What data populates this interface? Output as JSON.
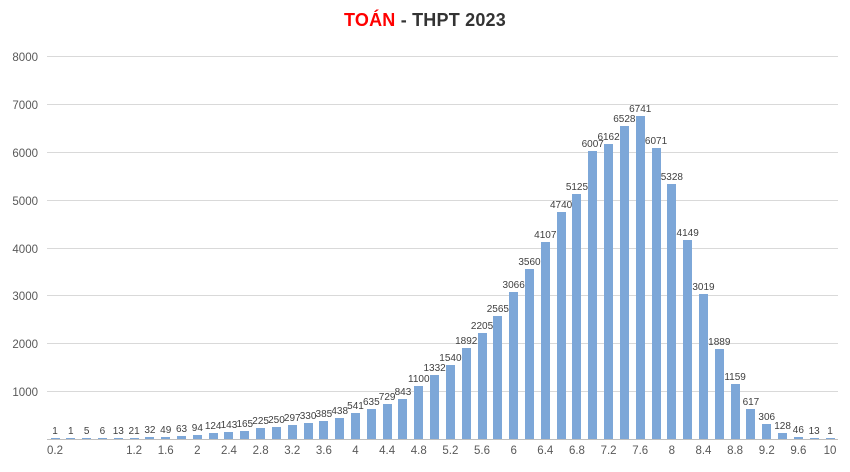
{
  "title": {
    "highlight": "TOÁN",
    "rest": " - THPT 2023"
  },
  "chart_data": {
    "type": "bar",
    "title": "TOÁN - THPT 2023",
    "x": [
      0.2,
      0.4,
      0.6,
      0.8,
      1,
      1.2,
      1.4,
      1.6,
      1.8,
      2,
      2.2,
      2.4,
      2.6,
      2.8,
      3,
      3.2,
      3.4,
      3.6,
      3.8,
      4,
      4.2,
      4.4,
      4.6,
      4.8,
      5,
      5.2,
      5.4,
      5.6,
      5.8,
      6,
      6.2,
      6.4,
      6.6,
      6.8,
      7,
      7.2,
      7.4,
      7.6,
      7.8,
      8,
      8.2,
      8.4,
      8.6,
      8.8,
      9,
      9.2,
      9.4,
      9.6,
      9.8,
      10
    ],
    "values": [
      1,
      1,
      5,
      6,
      13,
      21,
      32,
      49,
      63,
      94,
      124,
      143,
      165,
      225,
      250,
      297,
      330,
      385,
      438,
      541,
      635,
      729,
      843,
      1100,
      1332,
      1540,
      1892,
      2205,
      2565,
      3066,
      3560,
      4107,
      4740,
      5125,
      6007,
      6162,
      6528,
      6741,
      6071,
      5328,
      4149,
      3019,
      1889,
      1159,
      617,
      306,
      128,
      46,
      13,
      1
    ],
    "x_tick_labels": [
      "0.2",
      "1.2",
      "1.6",
      "2",
      "2.4",
      "2.8",
      "3.2",
      "3.6",
      "4",
      "4.4",
      "4.8",
      "5.2",
      "5.6",
      "6",
      "6.4",
      "6.8",
      "7.2",
      "7.6",
      "8",
      "8.4",
      "8.8",
      "9.2",
      "9.6",
      "10"
    ],
    "x_tick_values": [
      0.2,
      1.2,
      1.6,
      2,
      2.4,
      2.8,
      3.2,
      3.6,
      4,
      4.4,
      4.8,
      5.2,
      5.6,
      6,
      6.4,
      6.8,
      7.2,
      7.6,
      8,
      8.4,
      8.8,
      9.2,
      9.6,
      10
    ],
    "y_tick_values": [
      1000,
      2000,
      3000,
      4000,
      5000,
      6000,
      7000,
      8000
    ],
    "ylim": [
      0,
      8000
    ],
    "xlim": [
      0.2,
      10
    ],
    "bar_color": "#7da7d8",
    "label_color": "#404040",
    "grid": true,
    "legend": "none",
    "xlabel": "",
    "ylabel": ""
  }
}
